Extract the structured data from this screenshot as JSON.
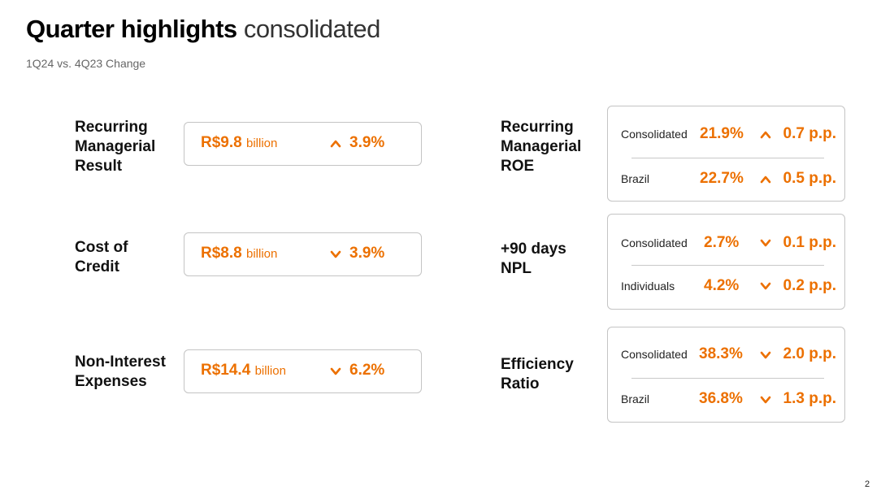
{
  "header": {
    "title_bold": "Quarter highlights",
    "title_light": "consolidated",
    "subtitle": "1Q24 vs. 4Q23 Change"
  },
  "left_metrics": [
    {
      "label_lines": [
        "Recurring",
        "Managerial",
        "Result"
      ],
      "value": "R$9.8",
      "unit": "billion",
      "direction": "up",
      "change": "3.9%"
    },
    {
      "label_lines": [
        "Cost of",
        "Credit"
      ],
      "value": "R$8.8",
      "unit": "billion",
      "direction": "down",
      "change": "3.9%"
    },
    {
      "label_lines": [
        "Non-Interest",
        "Expenses"
      ],
      "value": "R$14.4",
      "unit": "billion",
      "direction": "down",
      "change": "6.2%"
    }
  ],
  "right_metrics": [
    {
      "label_lines": [
        "Recurring",
        "Managerial",
        "ROE"
      ],
      "rows": [
        {
          "label": "Consolidated",
          "value": "21.9%",
          "direction": "up",
          "change": "0.7 p.p."
        },
        {
          "label": "Brazil",
          "value": "22.7%",
          "direction": "up",
          "change": "0.5 p.p."
        }
      ]
    },
    {
      "label_lines": [
        "+90 days",
        "NPL"
      ],
      "rows": [
        {
          "label": "Consolidated",
          "value": "2.7%",
          "direction": "down",
          "change": "0.1 p.p."
        },
        {
          "label": "Individuals",
          "value": "4.2%",
          "direction": "down",
          "change": "0.2 p.p."
        }
      ]
    },
    {
      "label_lines": [
        "Efficiency",
        "Ratio"
      ],
      "rows": [
        {
          "label": "Consolidated",
          "value": "38.3%",
          "direction": "down",
          "change": "2.0 p.p."
        },
        {
          "label": "Brazil",
          "value": "36.8%",
          "direction": "down",
          "change": "1.3 p.p."
        }
      ]
    }
  ],
  "page_number": "2",
  "colors": {
    "accent": "#ec7000",
    "border": "#c4c4c4"
  },
  "icons": {
    "up": "chevron-up-icon",
    "down": "chevron-down-icon"
  }
}
